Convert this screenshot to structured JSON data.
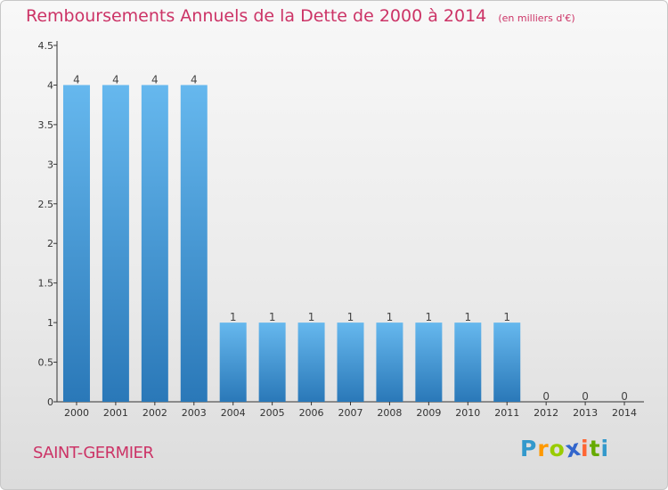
{
  "title": "Remboursements Annuels de la Dette de 2000 à 2014",
  "subtitle": "(en milliers d'€)",
  "commune": "SAINT-GERMIER",
  "logo": {
    "letters": [
      "P",
      "r",
      "o",
      "x",
      "i",
      "t",
      "i"
    ],
    "colors": [
      "#3399cc",
      "#ff9900",
      "#99cc00",
      "#3366cc",
      "#ff6633",
      "#66aa00",
      "#3399cc"
    ]
  },
  "colors": {
    "title": "#cc3366",
    "bar_light": "#66b8ee",
    "bar_dark": "#2a78b8",
    "axis": "#333333"
  },
  "chart_data": {
    "type": "bar",
    "categories": [
      "2000",
      "2001",
      "2002",
      "2003",
      "2004",
      "2005",
      "2006",
      "2007",
      "2008",
      "2009",
      "2010",
      "2011",
      "2012",
      "2013",
      "2014"
    ],
    "values": [
      4,
      4,
      4,
      4,
      1,
      1,
      1,
      1,
      1,
      1,
      1,
      1,
      0,
      0,
      0
    ],
    "ylim": [
      0,
      4.5
    ],
    "yticks": [
      "0",
      "0.5",
      "1",
      "1.5",
      "2",
      "2.5",
      "3",
      "3.5",
      "4",
      "4.5"
    ],
    "grid": false,
    "legend": "none"
  }
}
